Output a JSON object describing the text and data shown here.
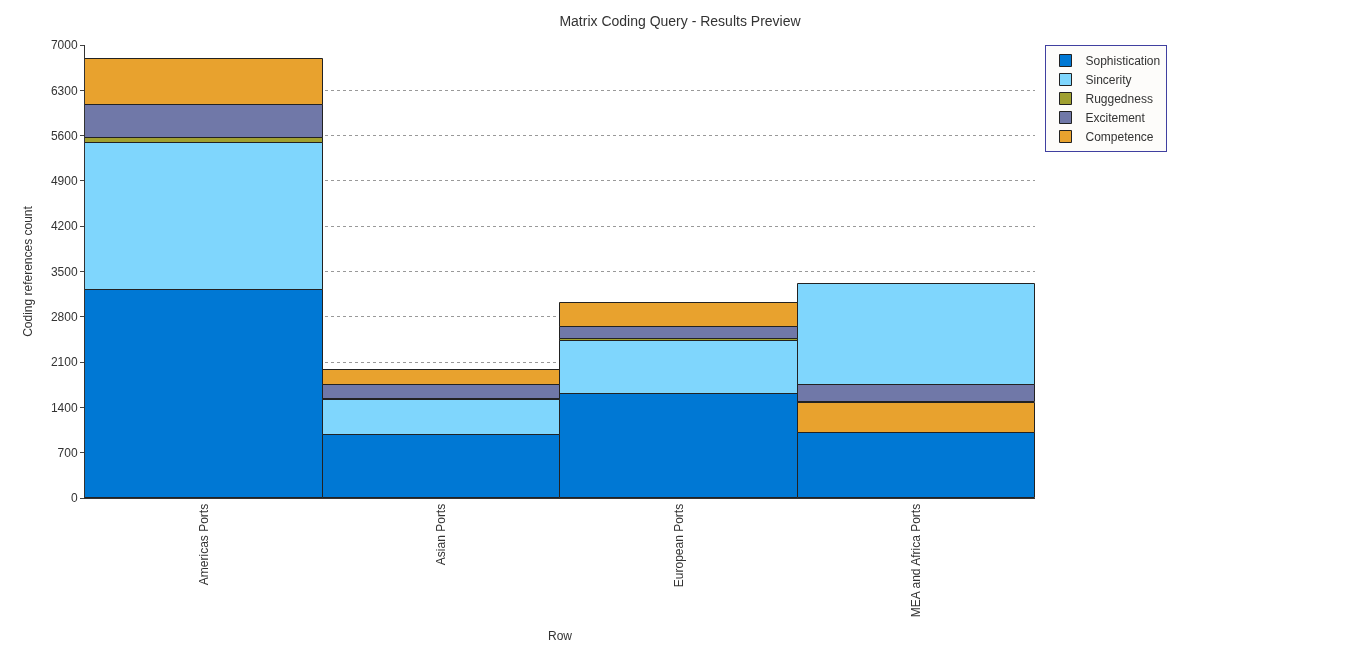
{
  "chart_data": {
    "type": "bar",
    "title": "Matrix Coding Query - Results Preview",
    "xlabel": "Row",
    "ylabel": "Coding references count",
    "categories": [
      "Americas Ports",
      "Asian Ports",
      "European Ports",
      "MEA and Africa Ports"
    ],
    "series": [
      {
        "name": "Sophistication",
        "color": "#0078d4",
        "values": [
          3220,
          980,
          1600,
          1000
        ],
        "base": [
          0,
          0,
          0,
          0
        ]
      },
      {
        "name": "Sincerity",
        "color": "#7fd6fd",
        "values": [
          2270,
          530,
          820,
          1560
        ],
        "base": [
          3220,
          980,
          1600,
          1750
        ]
      },
      {
        "name": "Ruggedness",
        "color": "#a0a030",
        "values": [
          80,
          null,
          40,
          null
        ],
        "base": [
          5490,
          null,
          2420,
          null
        ]
      },
      {
        "name": "Excitement",
        "color": "#7078a8",
        "values": [
          500,
          210,
          190,
          260
        ],
        "base": [
          5570,
          1530,
          2460,
          1490
        ]
      },
      {
        "name": "Competence",
        "color": "#e8a22e",
        "values": [
          710,
          240,
          360,
          470
        ],
        "base": [
          6070,
          1740,
          2650,
          1000
        ]
      }
    ],
    "ylim": [
      0,
      7000
    ],
    "yticks": [
      0,
      700,
      1400,
      2100,
      2800,
      3500,
      4200,
      4900,
      5600,
      6300,
      7000
    ],
    "grid": "y",
    "legend": "top right"
  }
}
